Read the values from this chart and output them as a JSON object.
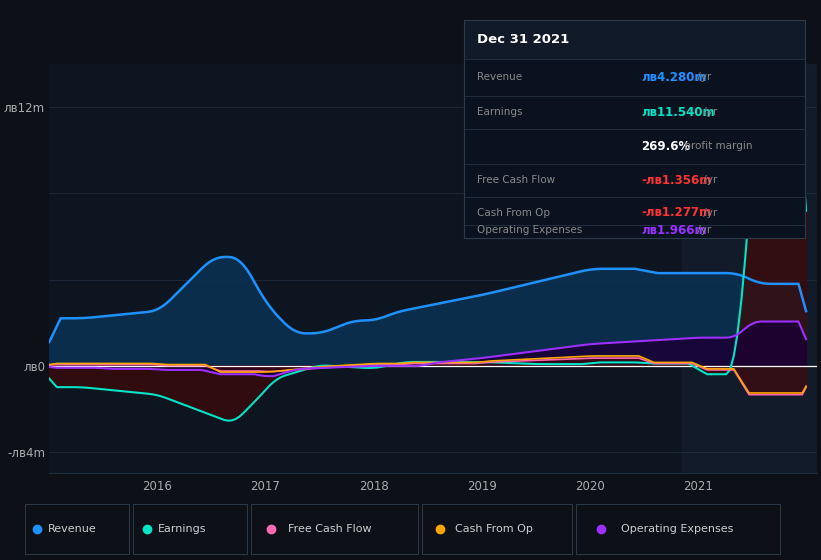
{
  "bg_color": "#0d1117",
  "plot_bg_color": "#0d1520",
  "grid_color": "#1e2d3d",
  "zero_line_color": "#ffffff",
  "ylim": [
    -5000000,
    14000000
  ],
  "series": {
    "revenue": {
      "label": "Revenue",
      "color": "#1e90ff",
      "fill_color": "#0a3050",
      "fill_alpha": 0.9
    },
    "earnings": {
      "label": "Earnings",
      "color": "#00e5c8",
      "fill_color": "#3d0a0a",
      "fill_alpha": 0.75
    },
    "fcf": {
      "label": "Free Cash Flow",
      "color": "#ff69b4",
      "fill_color": "#3d001a",
      "fill_alpha": 0.5
    },
    "cashfromop": {
      "label": "Cash From Op",
      "color": "#ffa500",
      "fill_color": "#3d2000",
      "fill_alpha": 0.5
    },
    "opex": {
      "label": "Operating Expenses",
      "color": "#9b30ff",
      "fill_color": "#1a0035",
      "fill_alpha": 0.85
    }
  },
  "infobox": {
    "title": "Dec 31 2021",
    "bg_color": "#0a1220",
    "border_color": "#2a3a4a"
  },
  "legend": [
    {
      "label": "Revenue",
      "color": "#1e90ff"
    },
    {
      "label": "Earnings",
      "color": "#00e5c8"
    },
    {
      "label": "Free Cash Flow",
      "color": "#ff69b4"
    },
    {
      "label": "Cash From Op",
      "color": "#ffa500"
    },
    {
      "label": "Operating Expenses",
      "color": "#9b30ff"
    }
  ],
  "highlight_color": "#162030",
  "highlight_alpha": 0.6
}
